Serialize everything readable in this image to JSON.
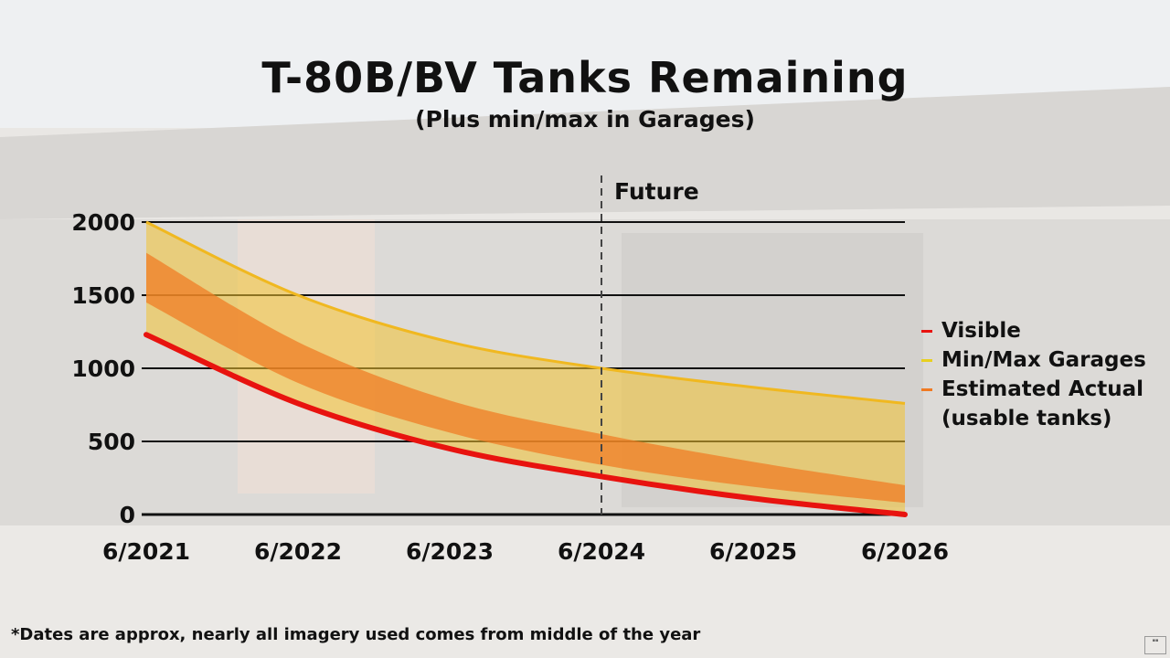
{
  "header": {
    "title": "T-80B/BV Tanks Remaining",
    "subtitle": "(Plus min/max in Garages)"
  },
  "footnote": "*Dates are approx, nearly all imagery used comes from middle of the year",
  "chart_data": {
    "type": "area",
    "categories": [
      "6/2021",
      "6/2022",
      "6/2023",
      "6/2024",
      "6/2025",
      "6/2026"
    ],
    "yticks": [
      0,
      500,
      1000,
      1500,
      2000
    ],
    "ylim": [
      0,
      2000
    ],
    "grid": true,
    "legend_position": "right",
    "annotation": "Future",
    "annotation_at": "6/2024",
    "series": [
      {
        "name": "Visible",
        "type": "line",
        "color": "#e8130f",
        "values": [
          1230,
          760,
          450,
          260,
          110,
          0
        ]
      },
      {
        "name": "Min/Max Garages",
        "type": "band",
        "color": "#f2c232",
        "min": [
          1230,
          760,
          450,
          260,
          110,
          0
        ],
        "max": [
          2000,
          1500,
          1180,
          1000,
          870,
          760
        ]
      },
      {
        "name": "Estimated Actual",
        "type": "band",
        "color": "#f07a22",
        "min": [
          1450,
          900,
          560,
          340,
          190,
          80
        ],
        "max": [
          1790,
          1180,
          780,
          550,
          360,
          200
        ]
      }
    ],
    "legend_extra": "(usable tanks)"
  }
}
